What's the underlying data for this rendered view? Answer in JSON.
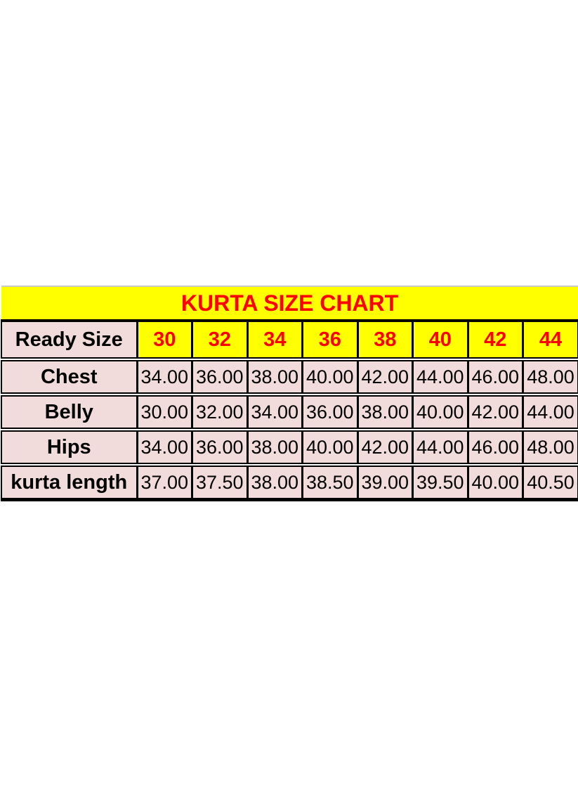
{
  "colors": {
    "page_background": "#ffffff",
    "title_background": "#ffff00",
    "title_text": "#ff0000",
    "size_cell_background": "#ffff00",
    "size_cell_text": "#ff0000",
    "label_cell_background": "#f2dcdb",
    "data_cell_background": "#f2dcdb",
    "data_text": "#000000",
    "border": "#000000",
    "top_edge": "#c9c9c9"
  },
  "chart_data": {
    "type": "table",
    "title": "KURTA SIZE CHART",
    "header": {
      "label": "Ready Size",
      "sizes": [
        "30",
        "32",
        "34",
        "36",
        "38",
        "40",
        "42",
        "44"
      ]
    },
    "rows": [
      {
        "label": "Chest",
        "values": [
          "34.00",
          "36.00",
          "38.00",
          "40.00",
          "42.00",
          "44.00",
          "46.00",
          "48.00"
        ]
      },
      {
        "label": "Belly",
        "values": [
          "30.00",
          "32.00",
          "34.00",
          "36.00",
          "38.00",
          "40.00",
          "42.00",
          "44.00"
        ]
      },
      {
        "label": "Hips",
        "values": [
          "34.00",
          "36.00",
          "38.00",
          "40.00",
          "42.00",
          "44.00",
          "46.00",
          "48.00"
        ]
      },
      {
        "label": "kurta length",
        "values": [
          "37.00",
          "37.50",
          "38.00",
          "38.50",
          "39.00",
          "39.50",
          "40.00",
          "40.50"
        ]
      }
    ]
  }
}
